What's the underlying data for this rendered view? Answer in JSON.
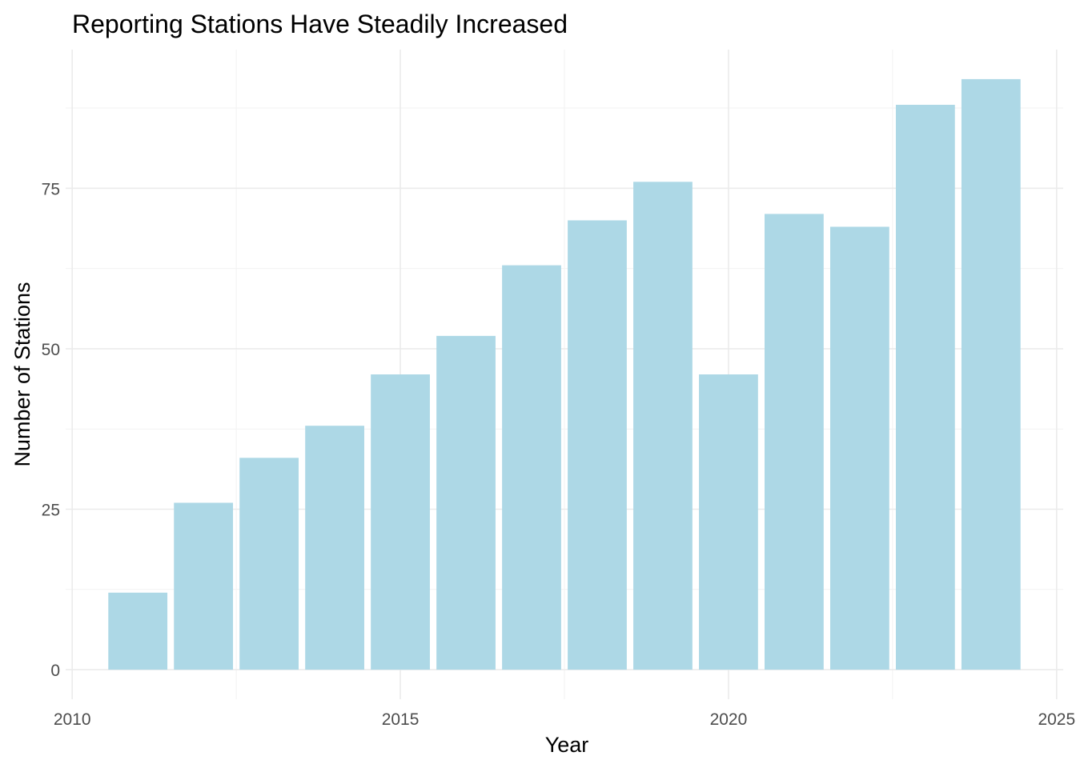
{
  "chart_data": {
    "type": "bar",
    "title": "Reporting Stations Have Steadily Increased",
    "xlabel": "Year",
    "ylabel": "Number of Stations",
    "x": [
      2011,
      2012,
      2013,
      2014,
      2015,
      2016,
      2017,
      2018,
      2019,
      2020,
      2021,
      2022,
      2023,
      2024
    ],
    "values": [
      12,
      26,
      33,
      38,
      46,
      52,
      63,
      70,
      76,
      46,
      71,
      69,
      88,
      92
    ],
    "xlim": [
      2009.9,
      2025.1
    ],
    "ylim": [
      -4.6,
      96.6
    ],
    "xticks": [
      2010,
      2015,
      2020,
      2025
    ],
    "xtick_labels": [
      "2010",
      "2015",
      "2020",
      "2025"
    ],
    "yticks": [
      0,
      25,
      50,
      75
    ],
    "ytick_labels": [
      "0",
      "25",
      "50",
      "75"
    ],
    "bar_color": "#add8e6",
    "grid": true,
    "legend": "none"
  }
}
